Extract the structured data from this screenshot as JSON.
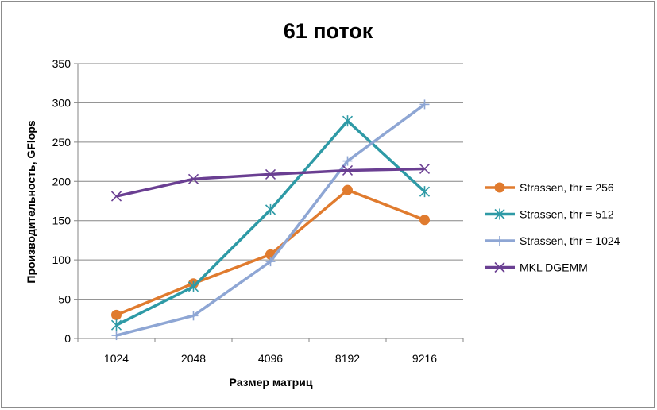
{
  "chart_data": {
    "type": "line",
    "title": "61 поток",
    "xlabel": "Размер матриц",
    "ylabel": "Производительность,  GFlops",
    "categories": [
      "1024",
      "2048",
      "4096",
      "8192",
      "9216"
    ],
    "ylim": [
      0,
      350
    ],
    "yticks": [
      "0",
      "50",
      "100",
      "150",
      "200",
      "250",
      "300",
      "350"
    ],
    "grid": true,
    "legend_position": "right",
    "series": [
      {
        "name": "Strassen, thr = 256",
        "color": "#e07b2e",
        "marker": "circle",
        "values": [
          30,
          70,
          107,
          189,
          151
        ]
      },
      {
        "name": "Strassen, thr = 512",
        "color": "#2e9aa6",
        "marker": "asterisk",
        "values": [
          17,
          66,
          164,
          277,
          187
        ]
      },
      {
        "name": "Strassen, thr = 1024",
        "color": "#8ea6d4",
        "marker": "plus",
        "values": [
          4,
          29,
          98,
          226,
          298
        ]
      },
      {
        "name": "MKL DGEMM",
        "color": "#6a3f92",
        "marker": "x",
        "values": [
          181,
          203,
          209,
          214,
          216
        ]
      }
    ]
  }
}
